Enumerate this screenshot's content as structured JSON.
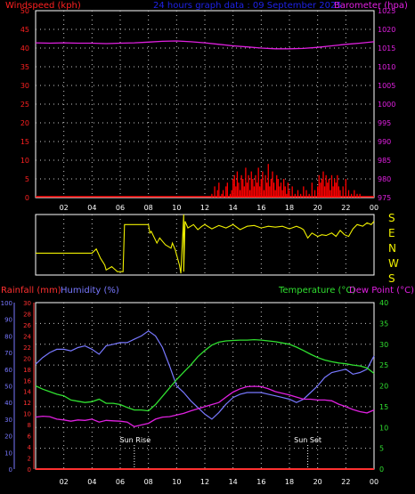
{
  "header": {
    "left_title": "Windspeed (kph)",
    "center_title": "24 hours graph data : 09 September 2025",
    "right_title": "Barometer (hpa)"
  },
  "colors": {
    "background": "#000000",
    "grid": "#c8c8c8",
    "wind": "#ff0000",
    "barometer": "#e020e0",
    "title_center": "#1e22e6",
    "direction": "#f0f000",
    "rainfall": "#ff3030",
    "humidity": "#7878ff",
    "temperature": "#30e030",
    "dewpoint": "#e020e0",
    "sun": "#ffffff"
  },
  "direction_axis_labels": [
    "S",
    "E",
    "N",
    "W",
    "S"
  ],
  "lower_header": {
    "rainfall": "Rainfall (mm)",
    "humidity": "Humidity (%)",
    "temperature": "Temperature (°C)",
    "dewpoint": "Dew Point (°C)"
  },
  "sun": {
    "rise_label": "Sun Rise",
    "set_label": "Sun Set",
    "rise_time": 7,
    "set_time": 19.3
  },
  "chart_data": [
    {
      "type": "line",
      "name": "wind-barometer",
      "x_ticks": [
        "02",
        "04",
        "06",
        "08",
        "10",
        "12",
        "14",
        "16",
        "18",
        "20",
        "22",
        "00"
      ],
      "xlim": [
        0,
        24
      ],
      "y_left_ticks": [
        "50",
        "45",
        "40",
        "35",
        "30",
        "25",
        "20",
        "15",
        "10",
        "5",
        "0"
      ],
      "y_left_lim": [
        0,
        50
      ],
      "y_right_ticks": [
        "1025",
        "1020",
        "1015",
        "1010",
        "1005",
        "1000",
        "995",
        "990",
        "985",
        "980",
        "975"
      ],
      "y_right_lim": [
        975,
        1025
      ],
      "grid": true,
      "series": [
        {
          "name": "Windspeed",
          "axis": "left",
          "x": [
            12.5,
            12.7,
            12.9,
            13.0,
            13.2,
            13.3,
            13.5,
            13.6,
            13.8,
            13.9,
            14.0,
            14.1,
            14.2,
            14.3,
            14.4,
            14.5,
            14.6,
            14.7,
            14.8,
            14.9,
            15.0,
            15.1,
            15.2,
            15.3,
            15.4,
            15.5,
            15.6,
            15.7,
            15.8,
            15.9,
            16.0,
            16.1,
            16.2,
            16.3,
            16.4,
            16.5,
            16.6,
            16.7,
            16.8,
            16.9,
            17.0,
            17.1,
            17.2,
            17.3,
            17.4,
            17.5,
            17.6,
            17.7,
            17.8,
            17.9,
            18.0,
            18.2,
            18.4,
            18.6,
            18.8,
            19.0,
            19.2,
            19.4,
            19.6,
            19.8,
            20.0,
            20.1,
            20.2,
            20.3,
            20.4,
            20.5,
            20.6,
            20.7,
            20.8,
            20.9,
            21.0,
            21.1,
            21.2,
            21.3,
            21.4,
            21.5,
            21.6,
            21.8,
            22.0,
            22.2,
            22.4,
            22.6,
            22.8,
            23.0
          ],
          "y": [
            1,
            3,
            2,
            4,
            1,
            2,
            3,
            4,
            1,
            2,
            5,
            6,
            3,
            7,
            4,
            2,
            6,
            5,
            3,
            8,
            4,
            6,
            2,
            7,
            5,
            3,
            6,
            4,
            8,
            3,
            5,
            7,
            2,
            6,
            4,
            9,
            3,
            5,
            7,
            4,
            2,
            6,
            5,
            3,
            4,
            2,
            5,
            3,
            1,
            4,
            2,
            3,
            1,
            2,
            1,
            3,
            2,
            1,
            4,
            2,
            3,
            6,
            4,
            5,
            7,
            3,
            6,
            4,
            5,
            2,
            6,
            3,
            5,
            4,
            6,
            3,
            2,
            3,
            5,
            2,
            1,
            2,
            1,
            1
          ]
        },
        {
          "name": "Barometer",
          "axis": "right",
          "x": [
            0,
            1,
            2,
            3,
            4,
            5,
            6,
            7,
            8,
            9,
            10,
            11,
            12,
            13,
            14,
            15,
            16,
            17,
            18,
            19,
            20,
            21,
            22,
            23,
            24
          ],
          "y": [
            1016.4,
            1016.3,
            1016.4,
            1016.3,
            1016.3,
            1016.2,
            1016.3,
            1016.4,
            1016.6,
            1016.8,
            1016.9,
            1016.7,
            1016.4,
            1016.0,
            1015.6,
            1015.3,
            1015.0,
            1014.8,
            1014.8,
            1014.9,
            1015.2,
            1015.6,
            1016.0,
            1016.3,
            1016.7
          ]
        }
      ]
    },
    {
      "type": "line",
      "name": "wind-direction",
      "x_ticks": [
        "02",
        "04",
        "06",
        "08",
        "10",
        "12",
        "14",
        "16",
        "18",
        "20",
        "22",
        "00"
      ],
      "xlim": [
        0,
        24
      ],
      "y_ticks": [
        "S",
        "E",
        "N",
        "W",
        "S"
      ],
      "ylim": [
        0,
        360
      ],
      "y_descending": false,
      "grid": true,
      "series": [
        {
          "name": "Wind direction",
          "x": [
            0,
            1,
            2,
            3,
            3.2,
            3.5,
            4,
            4.3,
            4.6,
            4.9,
            5.0,
            5.4,
            5.8,
            6.0,
            6.2,
            6.3,
            6.3,
            7.5,
            8.0,
            8.1,
            8.2,
            8.6,
            8.8,
            9.0,
            9.2,
            9.6,
            9.7,
            9.9,
            10.0,
            10.2,
            10.3,
            10.5,
            10.5,
            10.6,
            10.8,
            11.0,
            11.2,
            11.5,
            11.8,
            12.0,
            12.5,
            13.0,
            13.5,
            14.0,
            14.5,
            15.0,
            15.5,
            16.0,
            16.5,
            17.0,
            17.5,
            18.0,
            18.5,
            18.8,
            19.0,
            19.3,
            19.6,
            20.0,
            20.3,
            20.6,
            21.0,
            21.3,
            21.6,
            21.9,
            22.2,
            22.5,
            22.8,
            23.2,
            23.5,
            23.8,
            24.0
          ],
          "y": [
            130,
            130,
            130,
            130,
            130,
            130,
            130,
            155,
            100,
            60,
            30,
            50,
            20,
            20,
            20,
            300,
            300,
            300,
            300,
            250,
            260,
            190,
            220,
            200,
            180,
            160,
            190,
            150,
            120,
            60,
            10,
            360,
            20,
            320,
            280,
            290,
            300,
            270,
            290,
            300,
            275,
            295,
            280,
            300,
            270,
            290,
            295,
            280,
            290,
            285,
            290,
            275,
            290,
            280,
            270,
            220,
            250,
            230,
            240,
            235,
            250,
            230,
            265,
            240,
            230,
            275,
            300,
            290,
            310,
            300,
            320
          ]
        }
      ]
    },
    {
      "type": "line",
      "name": "rain-humidity-temperature-dewpoint",
      "x_ticks": [
        "02",
        "04",
        "06",
        "08",
        "10",
        "12",
        "14",
        "16",
        "18",
        "20",
        "22",
        "00"
      ],
      "xlim": [
        0,
        24
      ],
      "y_humidity_ticks": [
        "100",
        "90",
        "80",
        "70",
        "60",
        "50",
        "40",
        "30",
        "20",
        "10",
        "0"
      ],
      "y_humidity_lim": [
        0,
        100
      ],
      "y_rain_ticks": [
        "30",
        "28",
        "26",
        "24",
        "22",
        "20",
        "18",
        "16",
        "14",
        "12",
        "10",
        "8",
        "6",
        "4",
        "2",
        "0"
      ],
      "y_rain_lim": [
        0,
        30
      ],
      "y_temp_ticks": [
        "40",
        "35",
        "30",
        "25",
        "20",
        "15",
        "10",
        "5",
        "0"
      ],
      "y_temp_lim": [
        0,
        40
      ],
      "grid": true,
      "series": [
        {
          "name": "Rainfall",
          "axis": "rain",
          "x": [
            0,
            24
          ],
          "y": [
            0,
            0
          ]
        },
        {
          "name": "Humidity",
          "axis": "humidity",
          "x": [
            0,
            0.5,
            1,
            1.5,
            2,
            2.5,
            3,
            3.5,
            4,
            4.5,
            5,
            5.5,
            6,
            6.5,
            7,
            7.5,
            8,
            8.5,
            9,
            9.5,
            10,
            10.5,
            11,
            11.5,
            12,
            12.5,
            13,
            13.5,
            14,
            14.5,
            15,
            15.5,
            16,
            16.5,
            17,
            17.5,
            18,
            18.5,
            19,
            19.5,
            20,
            20.5,
            21,
            21.5,
            22,
            22.5,
            23,
            23.5,
            24
          ],
          "y": [
            63,
            67,
            70,
            72,
            72,
            71,
            73,
            74,
            72,
            69,
            74,
            75,
            76,
            76,
            78,
            80,
            83,
            80,
            73,
            62,
            50,
            46,
            41,
            37,
            33,
            30,
            34,
            39,
            43,
            45,
            46,
            46,
            46,
            45,
            44,
            43,
            42,
            40,
            42,
            46,
            50,
            55,
            58,
            59,
            60,
            57,
            58,
            60,
            68
          ]
        },
        {
          "name": "Temperature",
          "axis": "temp",
          "x": [
            0,
            0.5,
            1,
            1.5,
            2,
            2.5,
            3,
            3.5,
            4,
            4.5,
            5,
            5.5,
            6,
            6.5,
            7,
            7.5,
            8,
            8.5,
            9,
            9.5,
            10,
            10.5,
            11,
            11.5,
            12,
            12.5,
            13,
            13.5,
            14,
            14.5,
            15,
            15.5,
            16,
            16.5,
            17,
            17.5,
            18,
            18.5,
            19,
            19.5,
            20,
            20.5,
            21,
            21.5,
            22,
            22.5,
            23,
            23.5,
            24
          ],
          "y": [
            20,
            19.2,
            18.6,
            18.0,
            17.6,
            16.6,
            16.3,
            16.0,
            16.2,
            16.8,
            15.8,
            15.8,
            15.5,
            14.8,
            14.2,
            14.2,
            14.0,
            15.5,
            17.5,
            19.5,
            21.5,
            23.3,
            25.0,
            27.0,
            28.5,
            29.8,
            30.5,
            30.8,
            30.9,
            31.0,
            31.0,
            31.1,
            31.0,
            30.8,
            30.6,
            30.3,
            30.0,
            29.3,
            28.5,
            27.6,
            26.8,
            26.2,
            25.8,
            25.5,
            25.3,
            25.0,
            24.8,
            24.3,
            23.0
          ]
        },
        {
          "name": "Dew Point",
          "axis": "temp",
          "x": [
            0,
            0.5,
            1,
            1.5,
            2,
            2.5,
            3,
            3.5,
            4,
            4.5,
            5,
            5.5,
            6,
            6.5,
            7,
            7.5,
            8,
            8.5,
            9,
            9.5,
            10,
            10.5,
            11,
            11.5,
            12,
            12.5,
            13,
            13.5,
            14,
            14.5,
            15,
            15.5,
            16,
            16.5,
            17,
            17.5,
            18,
            18.5,
            19,
            19.5,
            20,
            20.5,
            21,
            21.5,
            22,
            22.5,
            23,
            23.5,
            24
          ],
          "y": [
            12.5,
            12.7,
            12.6,
            12.0,
            11.8,
            11.5,
            11.8,
            11.7,
            12.0,
            11.3,
            11.7,
            11.6,
            11.5,
            11.3,
            10.2,
            10.6,
            11.0,
            12.0,
            12.5,
            12.6,
            13.0,
            13.4,
            14.0,
            14.5,
            15.0,
            15.5,
            16.0,
            17.3,
            18.5,
            19.3,
            19.8,
            19.9,
            19.8,
            19.3,
            18.6,
            18.2,
            17.8,
            17.3,
            16.8,
            16.8,
            16.6,
            16.6,
            16.4,
            15.6,
            15.0,
            14.3,
            13.8,
            13.5,
            14.2
          ]
        }
      ]
    }
  ]
}
